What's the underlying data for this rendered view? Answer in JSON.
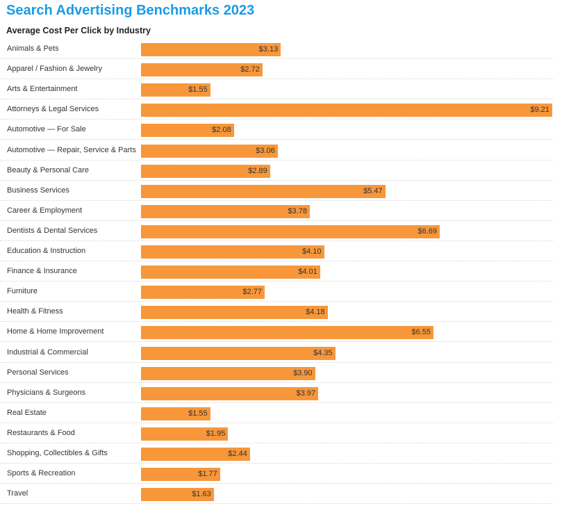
{
  "header": {
    "title": "Search Advertising Benchmarks 2023",
    "subtitle": "Average Cost Per Click by Industry"
  },
  "colors": {
    "title": "#1a9be6",
    "bar": "#f7973a"
  },
  "chart_data": {
    "type": "bar",
    "orientation": "horizontal",
    "title": "Search Advertising Benchmarks 2023",
    "subtitle": "Average Cost Per Click by Industry",
    "xlabel": "",
    "ylabel": "",
    "xlim": [
      0,
      9.21
    ],
    "grid": false,
    "categories": [
      "Animals & Pets",
      "Apparel / Fashion & Jewelry",
      "Arts & Entertainment",
      "Attorneys & Legal Services",
      "Automotive — For Sale",
      "Automotive — Repair, Service & Parts",
      "Beauty & Personal Care",
      "Business Services",
      "Career & Employment",
      "Dentists & Dental Services",
      "Education & Instruction",
      "Finance & Insurance",
      "Furniture",
      "Health & Fitness",
      "Home & Home Improvement",
      "Industrial & Commercial",
      "Personal Services",
      "Physicians & Surgeons",
      "Real Estate",
      "Restaurants & Food",
      "Shopping, Collectibles & Gifts",
      "Sports & Recreation",
      "Travel"
    ],
    "values": [
      3.13,
      2.72,
      1.55,
      9.21,
      2.08,
      3.06,
      2.89,
      5.47,
      3.78,
      6.69,
      4.1,
      4.01,
      2.77,
      4.18,
      6.55,
      4.35,
      3.9,
      3.97,
      1.55,
      1.95,
      2.44,
      1.77,
      1.63
    ],
    "value_labels": [
      "$3.13",
      "$2.72",
      "$1.55",
      "$9.21",
      "$2.08",
      "$3.06",
      "$2.89",
      "$5.47",
      "$3.78",
      "$6.69",
      "$4.10",
      "$4.01",
      "$2.77",
      "$4.18",
      "$6.55",
      "$4.35",
      "$3.90",
      "$3.97",
      "$1.55",
      "$1.95",
      "$2.44",
      "$1.77",
      "$1.63"
    ]
  }
}
